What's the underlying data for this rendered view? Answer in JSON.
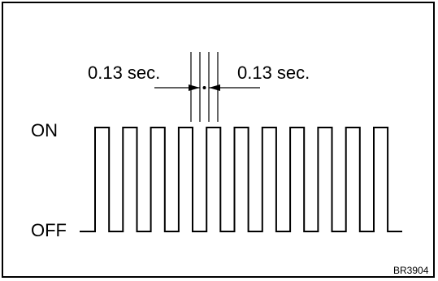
{
  "labels": {
    "left_interval": "0.13 sec.",
    "right_interval": "0.13 sec.",
    "on": "ON",
    "off": "OFF",
    "figure_code": "BR3904"
  },
  "signal": {
    "pulse_count": 11,
    "pulse_on_seconds": 0.13,
    "pulse_off_seconds": 0.13
  },
  "colors": {
    "line": "#000000",
    "background": "#ffffff"
  }
}
